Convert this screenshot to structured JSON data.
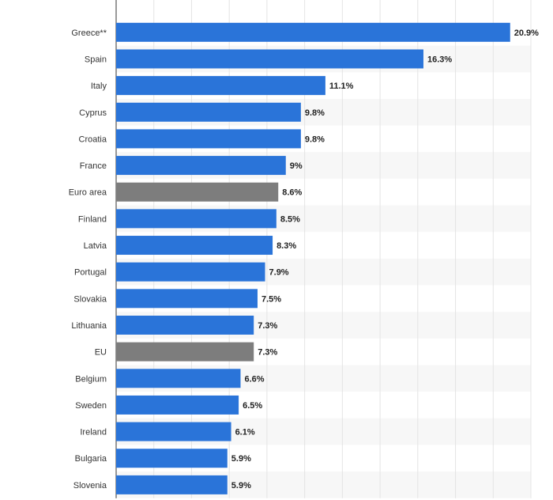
{
  "chart_data": {
    "type": "bar",
    "orientation": "horizontal",
    "title": "",
    "xlabel": "",
    "ylabel": "",
    "xlim": [
      0,
      22
    ],
    "grid": true,
    "value_suffix": "%",
    "categories": [
      "Greece**",
      "Spain",
      "Italy",
      "Cyprus",
      "Croatia",
      "France",
      "Euro area",
      "Finland",
      "Latvia",
      "Portugal",
      "Slovakia",
      "Lithuania",
      "EU",
      "Belgium",
      "Sweden",
      "Ireland",
      "Bulgaria",
      "Slovenia"
    ],
    "values": [
      20.9,
      16.3,
      11.1,
      9.8,
      9.8,
      9,
      8.6,
      8.5,
      8.3,
      7.9,
      7.5,
      7.3,
      7.3,
      6.6,
      6.5,
      6.1,
      5.9,
      5.9
    ],
    "value_labels": [
      "20.9%",
      "16.3%",
      "11.1%",
      "9.8%",
      "9.8%",
      "9%",
      "8.6%",
      "8.5%",
      "8.3%",
      "7.9%",
      "7.5%",
      "7.3%",
      "7.3%",
      "6.6%",
      "6.5%",
      "6.1%",
      "5.9%",
      "5.9%"
    ],
    "highlighted": [
      "Euro area",
      "EU"
    ],
    "colors": {
      "bar": "#2a74d9",
      "highlight": "#7d7d7d",
      "grid": "#e4e4e4",
      "band": "#f7f7f7",
      "axis": "#333333"
    }
  }
}
